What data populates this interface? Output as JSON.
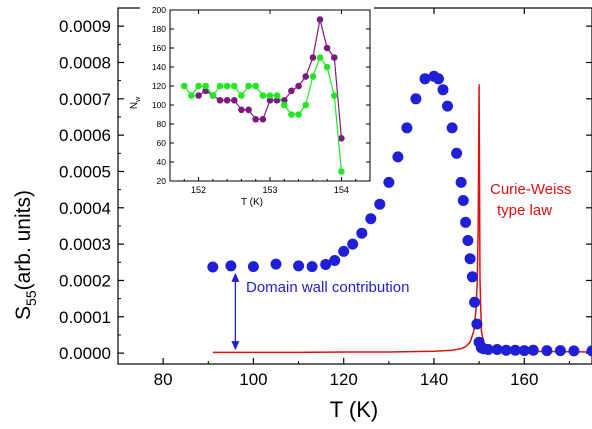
{
  "chart_data": [
    {
      "type": "scatter",
      "xlabel": "T (K)",
      "ylabel": "S",
      "ylabel_sub": "55",
      "ylabel_rest": "(arb. units)",
      "xlim": [
        70,
        175
      ],
      "ylim": [
        -3e-05,
        0.00095
      ],
      "xticks": [
        80,
        100,
        120,
        140,
        160
      ],
      "yticks": [
        0.0,
        0.0001,
        0.0002,
        0.0003,
        0.0004,
        0.0005,
        0.0006,
        0.0007,
        0.0008,
        0.0009
      ],
      "ytick_labels": [
        "0.0000",
        "0.0001",
        "0.0002",
        "0.0003",
        "0.0004",
        "0.0005",
        "0.0006",
        "0.0007",
        "0.0008",
        "0.0009"
      ],
      "annotations": {
        "curie_weiss_line1": "Curie-Weiss",
        "curie_weiss_line2": "type law",
        "domain_wall": "Domain wall contribution"
      },
      "colors": {
        "data": "#1f1fd6",
        "fit": "#e01010",
        "arrow": "#1f1fd6"
      },
      "series": [
        {
          "style": "markers",
          "x": [
            91,
            95,
            100,
            105,
            110,
            113,
            116,
            118,
            120,
            122,
            124,
            126,
            128,
            130,
            132,
            134,
            136,
            138,
            140,
            141,
            142,
            143,
            144,
            145,
            146,
            146.5,
            147,
            147.5,
            148,
            148.5,
            149,
            149.5,
            150,
            150.5,
            151,
            152,
            154,
            156,
            158,
            160,
            162,
            165,
            168,
            171,
            175
          ],
          "y": [
            0.000237,
            0.00024,
            0.000238,
            0.000245,
            0.00024,
            0.000238,
            0.000244,
            0.000255,
            0.00028,
            0.0003,
            0.00033,
            0.00037,
            0.00041,
            0.00047,
            0.00054,
            0.00062,
            0.0007,
            0.000755,
            0.000762,
            0.000755,
            0.000725,
            0.00068,
            0.00062,
            0.00055,
            0.00047,
            0.00042,
            0.00036,
            0.00031,
            0.00026,
            0.00021,
            0.00014,
            8e-05,
            3e-05,
            1.5e-05,
            1.2e-05,
            1e-05,
            1e-05,
            8e-06,
            8e-06,
            7e-06,
            8e-06,
            7e-06,
            7e-06,
            6e-06,
            6e-06
          ]
        },
        {
          "style": "line",
          "x": [
            91,
            100,
            110,
            120,
            130,
            140,
            144,
            146,
            147,
            148,
            148.8,
            149.3,
            149.6,
            149.8,
            150,
            150.2,
            150.5,
            151,
            152,
            155,
            160,
            175
          ],
          "y": [
            2e-06,
            2e-06,
            2e-06,
            3e-06,
            3e-06,
            5e-06,
            8e-06,
            1.2e-05,
            1.8e-05,
            3e-05,
            6e-05,
            0.00012,
            0.0002,
            0.00035,
            0.00074,
            0.0002,
            6e-05,
            3e-05,
            1.5e-05,
            8e-06,
            5e-06,
            3e-06
          ]
        }
      ]
    },
    {
      "type": "line",
      "xlabel": "T (K)",
      "ylabel": "N",
      "ylabel_sub": "w",
      "xlim": [
        151.6,
        154.4
      ],
      "ylim": [
        20,
        200
      ],
      "xticks": [
        152,
        153,
        154
      ],
      "yticks": [
        20,
        40,
        60,
        80,
        100,
        120,
        140,
        160,
        180,
        200
      ],
      "colors": {
        "purple": "#7a1a80",
        "green": "#22e622"
      },
      "series": [
        {
          "color_key": "purple",
          "x": [
            152.0,
            152.1,
            152.2,
            152.3,
            152.4,
            152.5,
            152.6,
            152.7,
            152.8,
            152.9,
            153.0,
            153.1,
            153.2,
            153.3,
            153.4,
            153.5,
            153.6,
            153.7,
            153.8,
            153.9,
            154.0
          ],
          "y": [
            110,
            115,
            110,
            105,
            105,
            105,
            95,
            95,
            85,
            85,
            105,
            105,
            105,
            115,
            120,
            130,
            150,
            190,
            160,
            150,
            65
          ]
        },
        {
          "color_key": "green",
          "x": [
            151.8,
            151.9,
            152.0,
            152.1,
            152.2,
            152.3,
            152.4,
            152.5,
            152.6,
            152.7,
            152.8,
            152.9,
            153.0,
            153.1,
            153.2,
            153.3,
            153.4,
            153.5,
            153.6,
            153.7,
            153.8,
            153.9,
            154.0
          ],
          "y": [
            120,
            110,
            120,
            120,
            110,
            120,
            120,
            120,
            110,
            120,
            120,
            110,
            110,
            110,
            100,
            90,
            90,
            100,
            130,
            150,
            140,
            110,
            30
          ]
        }
      ]
    }
  ]
}
